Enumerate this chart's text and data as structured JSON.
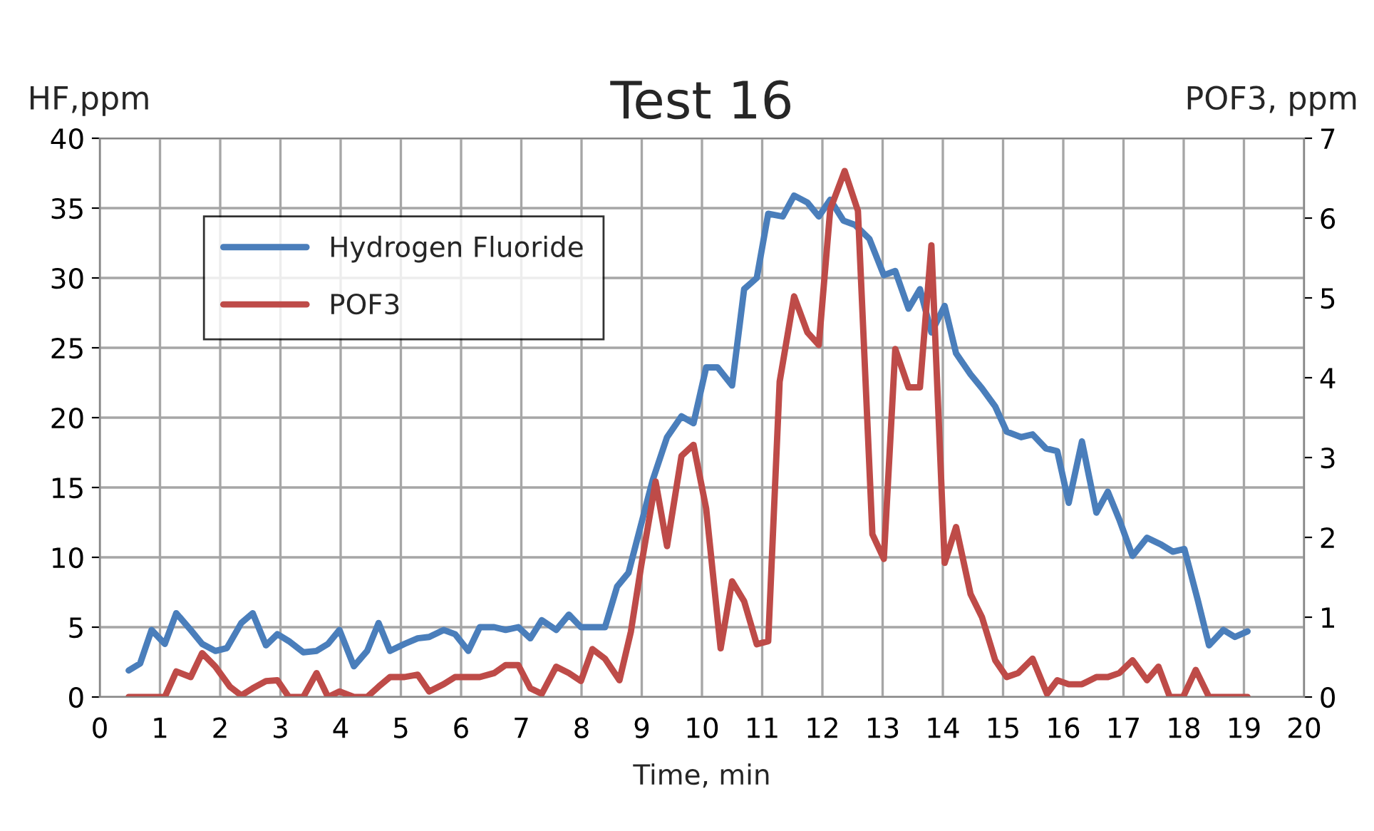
{
  "chart_data": {
    "type": "line",
    "title": "Test 16",
    "xlabel": "Time, min",
    "ylabel": "HF,ppm",
    "y2label": "POF3, ppm",
    "xlim": [
      0,
      20
    ],
    "xticks": [
      0,
      1,
      2,
      3,
      4,
      5,
      6,
      7,
      8,
      9,
      10,
      11,
      12,
      13,
      14,
      15,
      16,
      17,
      18,
      19,
      20
    ],
    "ylim": [
      0,
      40
    ],
    "yticks": [
      0,
      5,
      10,
      15,
      20,
      25,
      30,
      35,
      40
    ],
    "y2lim": [
      0,
      7
    ],
    "y2ticks": [
      0,
      1,
      2,
      3,
      4,
      5,
      6,
      7
    ],
    "grid": true,
    "legend": "top left",
    "marker": "none",
    "line_style": "solid",
    "series": [
      {
        "name": "Hydrogen Fluoride",
        "color": "#4a7ebb",
        "x": [
          0.48,
          0.67,
          0.86,
          1.08,
          1.27,
          1.51,
          1.7,
          1.92,
          2.11,
          2.35,
          2.54,
          2.76,
          2.95,
          3.14,
          3.38,
          3.6,
          3.79,
          3.98,
          4.22,
          4.44,
          4.63,
          4.82,
          5.06,
          5.28,
          5.47,
          5.71,
          5.9,
          6.12,
          6.31,
          6.55,
          6.74,
          6.95,
          7.15,
          7.34,
          7.58,
          7.79,
          7.99,
          8.39,
          8.59,
          8.78,
          9.18,
          9.42,
          9.66,
          9.86,
          10.07,
          10.26,
          10.5,
          10.7,
          10.91,
          11.1,
          11.34,
          11.53,
          11.75,
          11.94,
          12.13,
          12.35,
          12.54,
          12.78,
          13.02,
          13.21,
          13.43,
          13.62,
          13.81,
          14.03,
          14.22,
          14.46,
          14.65,
          14.87,
          15.06,
          15.3,
          15.49,
          15.71,
          15.9,
          16.09,
          16.31,
          16.55,
          16.74,
          16.93,
          17.15,
          17.39,
          17.63,
          17.82,
          18.01,
          18.23,
          18.42,
          18.66,
          18.85,
          19.06
        ],
        "values": [
          1.9,
          2.4,
          4.8,
          3.8,
          6.0,
          4.8,
          3.8,
          3.3,
          3.5,
          5.3,
          6.0,
          3.7,
          4.5,
          4.0,
          3.2,
          3.3,
          3.8,
          4.8,
          2.2,
          3.3,
          5.3,
          3.3,
          3.8,
          4.2,
          4.3,
          4.8,
          4.5,
          3.3,
          5.0,
          5.0,
          4.8,
          5.0,
          4.2,
          5.5,
          4.8,
          5.9,
          5.0,
          5.0,
          7.9,
          8.9,
          15.5,
          18.6,
          20.1,
          19.6,
          23.6,
          23.6,
          22.3,
          29.2,
          30.0,
          34.6,
          34.4,
          35.9,
          35.4,
          34.4,
          35.6,
          34.1,
          33.8,
          32.8,
          30.2,
          30.5,
          27.8,
          29.2,
          26.1,
          28.0,
          24.6,
          23.1,
          22.1,
          20.8,
          19.0,
          18.6,
          18.8,
          17.8,
          17.6,
          13.9,
          18.3,
          13.2,
          14.7,
          12.7,
          10.1,
          11.4,
          10.9,
          10.4,
          10.6,
          7.0,
          3.7,
          4.8,
          4.3,
          4.7
        ]
      },
      {
        "name": "POF3",
        "color": "#be4b48",
        "axis": "y2",
        "x": [
          0.48,
          1.08,
          1.27,
          1.51,
          1.7,
          1.92,
          2.16,
          2.35,
          2.54,
          2.76,
          2.95,
          3.14,
          3.38,
          3.6,
          3.79,
          3.98,
          4.22,
          4.44,
          4.63,
          4.82,
          5.06,
          5.28,
          5.47,
          5.71,
          5.9,
          6.12,
          6.31,
          6.55,
          6.74,
          6.95,
          7.15,
          7.34,
          7.58,
          7.79,
          7.99,
          8.18,
          8.39,
          8.63,
          8.82,
          8.99,
          9.23,
          9.42,
          9.66,
          9.86,
          10.07,
          10.31,
          10.5,
          10.7,
          10.91,
          11.1,
          11.29,
          11.53,
          11.75,
          11.94,
          12.13,
          12.37,
          12.59,
          12.83,
          13.02,
          13.21,
          13.43,
          13.62,
          13.81,
          14.03,
          14.22,
          14.46,
          14.65,
          14.87,
          15.06,
          15.25,
          15.49,
          15.73,
          15.9,
          16.09,
          16.31,
          16.55,
          16.74,
          16.93,
          17.15,
          17.39,
          17.58,
          17.77,
          17.99,
          18.2,
          18.42,
          19.06
        ],
        "values": [
          0,
          0,
          0.32,
          0.25,
          0.55,
          0.38,
          0.13,
          0.02,
          0.11,
          0.2,
          0.21,
          0,
          0,
          0.3,
          0,
          0.07,
          0,
          0,
          0.13,
          0.25,
          0.25,
          0.28,
          0.07,
          0.16,
          0.25,
          0.25,
          0.25,
          0.3,
          0.4,
          0.4,
          0.11,
          0.04,
          0.38,
          0.3,
          0.2,
          0.6,
          0.48,
          0.21,
          0.82,
          1.64,
          2.7,
          1.89,
          3.02,
          3.16,
          2.36,
          0.61,
          1.45,
          1.2,
          0.66,
          0.7,
          3.95,
          5.02,
          4.57,
          4.41,
          6.11,
          6.59,
          6.09,
          2.04,
          1.73,
          4.36,
          3.88,
          3.88,
          5.66,
          1.68,
          2.13,
          1.29,
          1.0,
          0.46,
          0.25,
          0.3,
          0.48,
          0.04,
          0.21,
          0.16,
          0.16,
          0.25,
          0.25,
          0.3,
          0.46,
          0.21,
          0.38,
          0,
          0,
          0.34,
          0,
          0
        ]
      }
    ]
  }
}
